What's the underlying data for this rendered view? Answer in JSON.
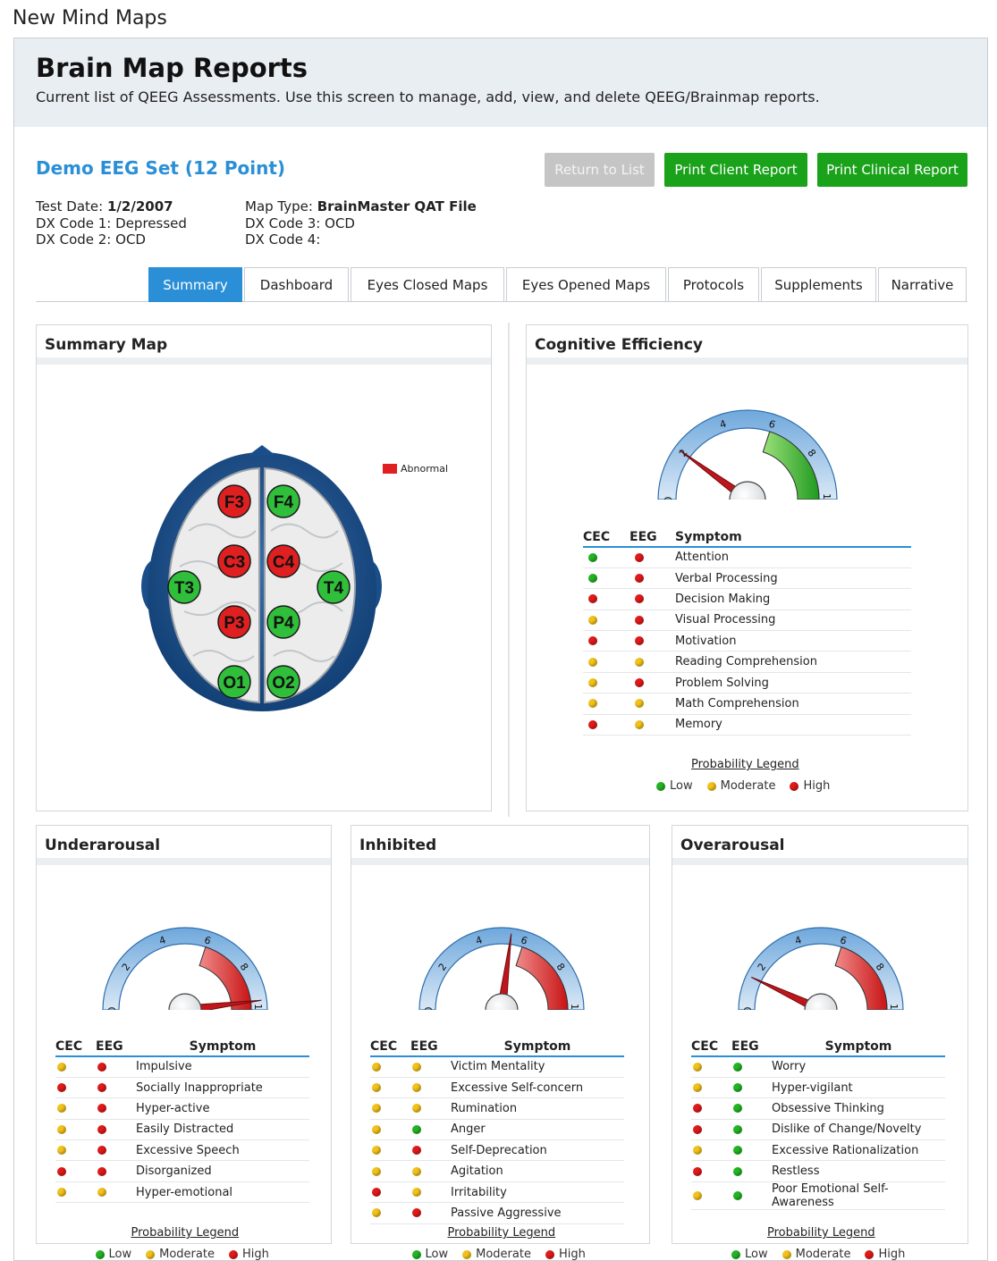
{
  "app_title": "New Mind Maps",
  "header": {
    "title": "Brain Map Reports",
    "subtitle": "Current list of QEEG Assessments. Use this screen to manage, add, view, and delete QEEG/Brainmap reports."
  },
  "report": {
    "title": "Demo EEG Set (12 Point)",
    "buttons": {
      "return": "Return to List",
      "print_client": "Print Client Report",
      "print_clinical": "Print Clinical Report"
    },
    "meta_left": [
      {
        "label": "Test Date:",
        "value": "1/2/2007",
        "bold": true
      },
      {
        "label": "DX Code 1:",
        "value": "Depressed",
        "bold": false
      },
      {
        "label": "DX Code 2:",
        "value": "OCD",
        "bold": false
      }
    ],
    "meta_right": [
      {
        "label": "Map Type:",
        "value": "BrainMaster QAT File",
        "bold": true
      },
      {
        "label": "DX Code 3:",
        "value": "OCD",
        "bold": false
      },
      {
        "label": "DX Code 4:",
        "value": "",
        "bold": false
      }
    ]
  },
  "tabs": [
    "Summary",
    "Dashboard",
    "Eyes Closed Maps",
    "Eyes Opened Maps",
    "Protocols",
    "Supplements",
    "Narrative"
  ],
  "active_tab": "Summary",
  "colors": {
    "accent": "#2a8fd6",
    "green": "#1aa21a",
    "low": "#22b422",
    "moderate": "#f2c21b",
    "high": "#e01a1a"
  },
  "summary_map": {
    "title": "Summary Map",
    "legend_label": "Abnormal",
    "electrodes": [
      {
        "name": "F3",
        "status": "abnormal"
      },
      {
        "name": "F4",
        "status": "normal"
      },
      {
        "name": "C3",
        "status": "abnormal"
      },
      {
        "name": "C4",
        "status": "abnormal"
      },
      {
        "name": "T3",
        "status": "normal"
      },
      {
        "name": "T4",
        "status": "normal"
      },
      {
        "name": "P3",
        "status": "abnormal"
      },
      {
        "name": "P4",
        "status": "normal"
      },
      {
        "name": "O1",
        "status": "normal"
      },
      {
        "name": "O2",
        "status": "normal"
      }
    ]
  },
  "table_headers": {
    "cec": "CEC",
    "eeg": "EEG",
    "symptom": "Symptom"
  },
  "legend": {
    "title": "Probability Legend",
    "low": "Low",
    "moderate": "Moderate",
    "high": "High"
  },
  "gauge_ticks": [
    "0",
    "2",
    "4",
    "6",
    "8",
    "10"
  ],
  "cognitive": {
    "title": "Cognitive Efficiency",
    "needle_value": 2,
    "band": {
      "from": 6,
      "to": 10,
      "color": "green"
    },
    "rows": [
      {
        "cec": "low",
        "eeg": "high",
        "symptom": "Attention"
      },
      {
        "cec": "low",
        "eeg": "high",
        "symptom": "Verbal Processing"
      },
      {
        "cec": "high",
        "eeg": "high",
        "symptom": "Decision Making"
      },
      {
        "cec": "moderate",
        "eeg": "high",
        "symptom": "Visual Processing"
      },
      {
        "cec": "high",
        "eeg": "high",
        "symptom": "Motivation"
      },
      {
        "cec": "moderate",
        "eeg": "moderate",
        "symptom": "Reading Comprehension"
      },
      {
        "cec": "moderate",
        "eeg": "high",
        "symptom": "Problem Solving"
      },
      {
        "cec": "moderate",
        "eeg": "moderate",
        "symptom": "Math Comprehension"
      },
      {
        "cec": "high",
        "eeg": "moderate",
        "symptom": "Memory"
      }
    ]
  },
  "underarousal": {
    "title": "Underarousal",
    "needle_value": 9.6,
    "band": {
      "from": 6,
      "to": 10,
      "color": "red"
    },
    "rows": [
      {
        "cec": "moderate",
        "eeg": "high",
        "symptom": "Impulsive"
      },
      {
        "cec": "high",
        "eeg": "high",
        "symptom": "Socially Inappropriate"
      },
      {
        "cec": "moderate",
        "eeg": "high",
        "symptom": "Hyper-active"
      },
      {
        "cec": "moderate",
        "eeg": "high",
        "symptom": "Easily Distracted"
      },
      {
        "cec": "moderate",
        "eeg": "high",
        "symptom": "Excessive Speech"
      },
      {
        "cec": "high",
        "eeg": "high",
        "symptom": "Disorganized"
      },
      {
        "cec": "moderate",
        "eeg": "moderate",
        "symptom": "Hyper-emotional"
      }
    ]
  },
  "inhibited": {
    "title": "Inhibited",
    "needle_value": 5.4,
    "band": {
      "from": 6,
      "to": 10,
      "color": "red"
    },
    "rows": [
      {
        "cec": "moderate",
        "eeg": "moderate",
        "symptom": "Victim Mentality"
      },
      {
        "cec": "moderate",
        "eeg": "moderate",
        "symptom": "Excessive Self-concern"
      },
      {
        "cec": "moderate",
        "eeg": "moderate",
        "symptom": "Rumination"
      },
      {
        "cec": "moderate",
        "eeg": "low",
        "symptom": "Anger"
      },
      {
        "cec": "moderate",
        "eeg": "high",
        "symptom": "Self-Deprecation"
      },
      {
        "cec": "moderate",
        "eeg": "moderate",
        "symptom": "Agitation"
      },
      {
        "cec": "high",
        "eeg": "moderate",
        "symptom": "Irritability"
      },
      {
        "cec": "moderate",
        "eeg": "high",
        "symptom": "Passive Aggressive"
      }
    ]
  },
  "overarousal": {
    "title": "Overarousal",
    "needle_value": 1.4,
    "band": {
      "from": 6,
      "to": 10,
      "color": "red"
    },
    "rows": [
      {
        "cec": "moderate",
        "eeg": "low",
        "symptom": "Worry"
      },
      {
        "cec": "moderate",
        "eeg": "low",
        "symptom": "Hyper-vigilant"
      },
      {
        "cec": "high",
        "eeg": "low",
        "symptom": "Obsessive Thinking"
      },
      {
        "cec": "high",
        "eeg": "low",
        "symptom": "Dislike of Change/Novelty"
      },
      {
        "cec": "moderate",
        "eeg": "low",
        "symptom": "Excessive Rationalization"
      },
      {
        "cec": "high",
        "eeg": "low",
        "symptom": "Restless"
      },
      {
        "cec": "moderate",
        "eeg": "low",
        "symptom": "Poor Emotional Self-Awareness"
      }
    ]
  }
}
